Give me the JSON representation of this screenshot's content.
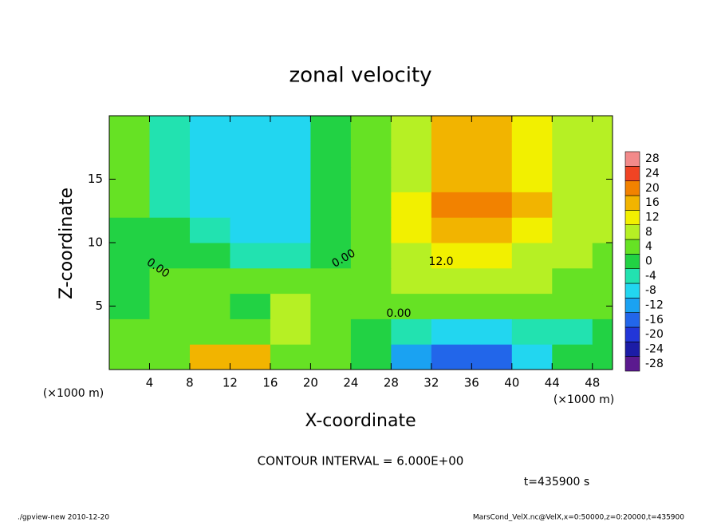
{
  "chart_data": {
    "type": "contour",
    "title": "zonal velocity",
    "xlabel": "X-coordinate",
    "ylabel": "Z-coordinate",
    "x_unit": "(×1000 m)",
    "x": [
      2,
      6,
      10,
      14,
      18,
      22,
      26,
      30,
      34,
      38,
      42,
      46,
      50
    ],
    "y": [
      1,
      3,
      5,
      7,
      9,
      11,
      13,
      15,
      17,
      19
    ],
    "values": [
      [
        2,
        2,
        14,
        14,
        4,
        2,
        -2,
        -12,
        -16,
        -18,
        -10,
        -2,
        0
      ],
      [
        2,
        2,
        4,
        4,
        8,
        2,
        0,
        -6,
        -8,
        -8,
        -4,
        -6,
        0
      ],
      [
        0,
        2,
        2,
        0,
        6,
        2,
        2,
        4,
        4,
        4,
        2,
        2,
        2
      ],
      [
        0,
        2,
        2,
        2,
        2,
        2,
        4,
        6,
        6,
        6,
        6,
        4,
        4
      ],
      [
        0,
        0,
        -2,
        -4,
        -3,
        0,
        4,
        8,
        10,
        10,
        8,
        6,
        4
      ],
      [
        0,
        -2,
        -6,
        -8,
        -7,
        -2,
        4,
        12,
        16,
        17,
        12,
        6,
        6
      ],
      [
        2,
        -3,
        -8,
        -10,
        -8,
        -2,
        4,
        12,
        18,
        18,
        14,
        8,
        6
      ],
      [
        2,
        -4,
        -8,
        -10,
        -9,
        -2,
        2,
        8,
        16,
        17,
        12,
        8,
        6
      ],
      [
        2,
        -4,
        -8,
        -10,
        -9,
        -2,
        2,
        6,
        16,
        16,
        12,
        8,
        8
      ],
      [
        2,
        -4,
        -8,
        -9,
        -8,
        -2,
        2,
        8,
        14,
        14,
        10,
        8,
        8
      ]
    ],
    "xlim": [
      0,
      50
    ],
    "ylim": [
      0,
      20
    ],
    "xticks": [
      4,
      8,
      12,
      16,
      20,
      24,
      28,
      32,
      36,
      40,
      44,
      48
    ],
    "yticks": [
      5,
      10,
      15
    ],
    "levels": [
      -30,
      -26,
      -22,
      -18,
      -14,
      -10,
      -6,
      -2,
      2,
      6,
      10,
      14,
      18,
      22,
      26,
      30
    ],
    "colors": [
      "#5b1a8f",
      "#1c1ca6",
      "#2236d8",
      "#2266ea",
      "#1aa2f2",
      "#22d6f0",
      "#22e2b0",
      "#22d244",
      "#66e224",
      "#b6f024",
      "#f2f000",
      "#f2b400",
      "#f28200",
      "#f04424",
      "#f28a8a"
    ],
    "colorbar_ticks": [
      -28,
      -24,
      -20,
      -16,
      -12,
      -8,
      -4,
      0,
      4,
      8,
      12,
      16,
      20,
      24,
      28
    ],
    "contour_labels": [
      "0.00",
      "0.00",
      "12.0",
      "0.00"
    ],
    "contour_interval": "CONTOUR INTERVAL = 6.000E+00",
    "time_label": "t=435900 s",
    "footer_left": "./gpview-new   2010-12-20",
    "footer_right": "MarsCond_VelX.nc@VelX,x=0:50000,z=0:20000,t=435900"
  }
}
